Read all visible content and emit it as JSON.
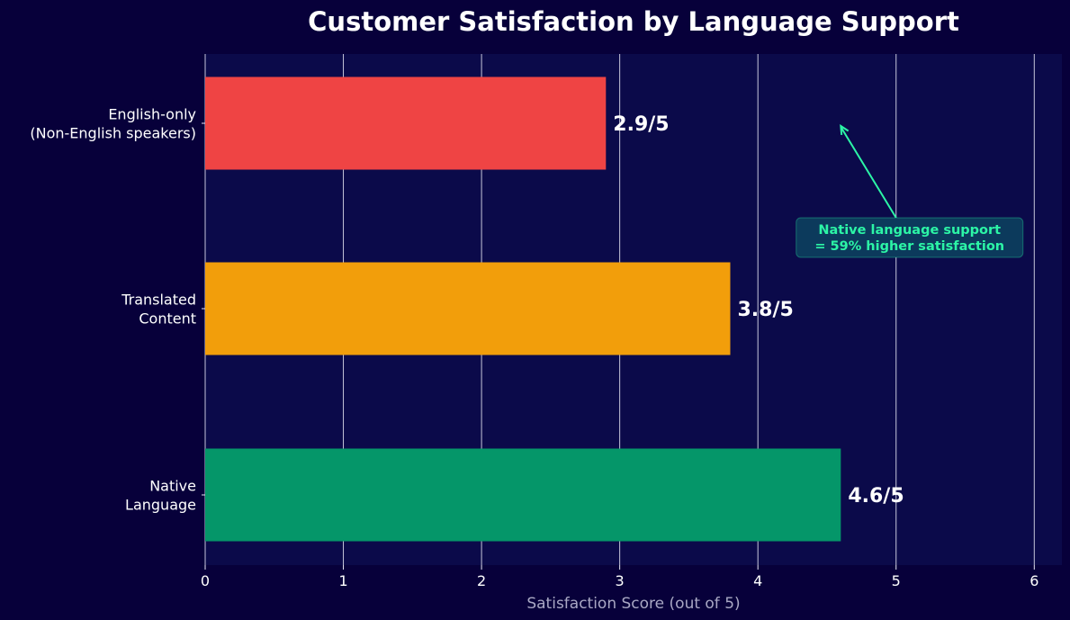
{
  "colors": {
    "page_background": "#07003a",
    "plot_background": "#0b0a4a",
    "grid": "#e8e8f5",
    "title": "#ffffff",
    "tick_label": "#ffffff",
    "axis_label": "#a9a8c4",
    "value_label": "#ffffff",
    "annotation": "#2cf5a6",
    "annotation_box": "#0c3a5c"
  },
  "chart_data": {
    "type": "bar",
    "orientation": "horizontal",
    "title": "Customer Satisfaction by Language Support",
    "xlabel": "Satisfaction Score (out of 5)",
    "ylabel": "",
    "xlim": [
      0,
      6.2
    ],
    "xticks": [
      0,
      1,
      2,
      3,
      4,
      5,
      6
    ],
    "grid": "vertical",
    "bars": [
      {
        "category_lines": [
          "English-only",
          "(Non-English speakers)"
        ],
        "value": 2.9,
        "label": "2.9/5",
        "color": "#ef4444"
      },
      {
        "category_lines": [
          "Translated",
          "Content"
        ],
        "value": 3.8,
        "label": "3.8/5",
        "color": "#f29e0b"
      },
      {
        "category_lines": [
          "Native",
          "Language"
        ],
        "value": 4.6,
        "label": "4.6/5",
        "color": "#059669"
      }
    ],
    "annotation": {
      "lines": [
        "Native language support",
        "= 59% higher satisfaction"
      ],
      "arrow_from": [
        5.0,
        0.5
      ],
      "arrow_to": [
        4.6,
        0.0
      ]
    }
  }
}
